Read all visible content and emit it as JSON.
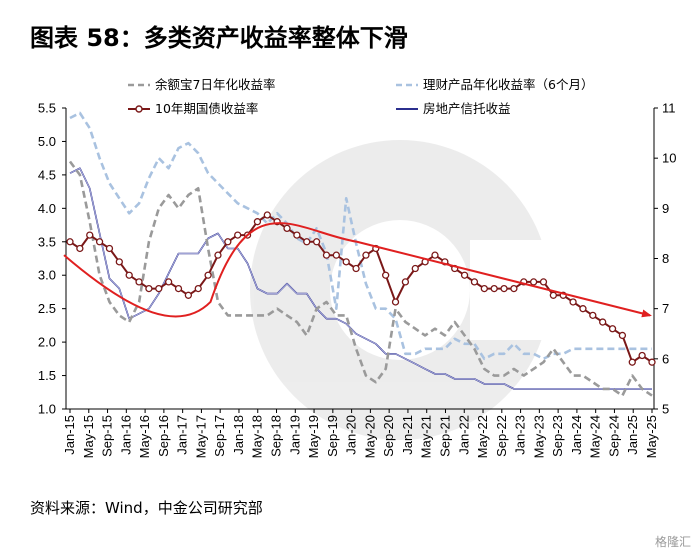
{
  "title": "图表 58：多类资产收益率整体下滑",
  "source": "资料来源：Wind，中金公司研究部",
  "watermark": "格隆汇",
  "chart_data": {
    "type": "line",
    "title": "图表 58：多类资产收益率整体下滑",
    "x_labels": [
      "Jan-15",
      "May-15",
      "Sep-15",
      "Jan-16",
      "May-16",
      "Sep-16",
      "Jan-17",
      "May-17",
      "Sep-17",
      "Jan-18",
      "May-18",
      "Sep-18",
      "Jan-19",
      "May-19",
      "Sep-19",
      "Jan-20",
      "May-20",
      "Sep-20",
      "Jan-21",
      "May-21",
      "Sep-21",
      "Jan-22",
      "May-22",
      "Sep-22",
      "Jan-23",
      "May-23",
      "Sep-23",
      "Jan-24",
      "May-24",
      "Sep-24",
      "Jan-25",
      "May-25"
    ],
    "y_left": {
      "min": 1.0,
      "max": 5.5,
      "ticks": [
        "1.0",
        "1.5",
        "2.0",
        "2.5",
        "3.0",
        "3.5",
        "4.0",
        "4.5",
        "5.0",
        "5.5"
      ]
    },
    "y_right": {
      "min": 5,
      "max": 11,
      "ticks": [
        "5",
        "6",
        "7",
        "8",
        "9",
        "10",
        "11"
      ]
    },
    "grid": false,
    "legend_position": "top",
    "series": [
      {
        "name": "余额宝7日年化收益率",
        "axis": "left",
        "style": "dashed",
        "color": "#9a9a9a",
        "values": [
          4.7,
          4.5,
          3.8,
          3.0,
          2.6,
          2.4,
          2.3,
          2.6,
          3.5,
          4.0,
          4.2,
          4.0,
          4.2,
          4.3,
          3.4,
          2.6,
          2.4,
          2.4,
          2.4,
          2.4,
          2.4,
          2.5,
          2.4,
          2.3,
          2.1,
          2.5,
          2.6,
          2.4,
          2.4,
          1.9,
          1.5,
          1.4,
          1.6,
          2.5,
          2.3,
          2.2,
          2.1,
          2.2,
          2.1,
          2.3,
          2.1,
          1.9,
          1.6,
          1.5,
          1.5,
          1.6,
          1.5,
          1.6,
          1.7,
          1.9,
          1.7,
          1.5,
          1.5,
          1.4,
          1.3,
          1.3,
          1.2,
          1.5,
          1.3,
          1.2
        ]
      },
      {
        "name": "理财产品年化收益率（6个月）",
        "axis": "right",
        "style": "dashed",
        "color": "#a9c2e0",
        "values": [
          10.8,
          10.9,
          10.6,
          10.0,
          9.5,
          9.2,
          8.9,
          9.1,
          9.6,
          10.0,
          9.8,
          10.2,
          10.3,
          10.1,
          9.7,
          9.5,
          9.3,
          9.1,
          9.0,
          8.9,
          8.7,
          8.9,
          8.7,
          8.4,
          8.3,
          8.6,
          8.1,
          7.0,
          9.2,
          8.3,
          7.5,
          7.0,
          7.0,
          6.8,
          6.1,
          6.1,
          6.2,
          6.2,
          6.2,
          6.4,
          6.3,
          6.3,
          6.0,
          6.1,
          6.1,
          6.3,
          6.1,
          6.1,
          6.0,
          6.1,
          6.1,
          6.2,
          6.2,
          6.2,
          6.2,
          6.2,
          6.2,
          6.2,
          6.2,
          6.2
        ]
      },
      {
        "name": "10年期国债收益率",
        "axis": "left",
        "style": "solid-markers",
        "color": "#7a1818",
        "values": [
          3.5,
          3.4,
          3.6,
          3.5,
          3.4,
          3.2,
          3.0,
          2.9,
          2.8,
          2.8,
          2.9,
          2.8,
          2.7,
          2.8,
          3.0,
          3.3,
          3.5,
          3.6,
          3.6,
          3.8,
          3.9,
          3.8,
          3.7,
          3.6,
          3.5,
          3.5,
          3.3,
          3.3,
          3.2,
          3.1,
          3.3,
          3.4,
          3.0,
          2.6,
          2.9,
          3.1,
          3.2,
          3.3,
          3.2,
          3.1,
          3.0,
          2.9,
          2.8,
          2.8,
          2.8,
          2.8,
          2.9,
          2.9,
          2.9,
          2.7,
          2.7,
          2.6,
          2.5,
          2.4,
          2.3,
          2.2,
          2.1,
          1.7,
          1.8,
          1.7
        ]
      },
      {
        "name": "房地产信托收益",
        "axis": "right",
        "style": "solid",
        "color": "#2b2f8e",
        "values": [
          9.7,
          9.8,
          9.4,
          8.5,
          7.6,
          7.4,
          6.8,
          6.9,
          7.0,
          7.3,
          7.7,
          8.1,
          8.1,
          8.1,
          8.4,
          8.5,
          8.2,
          8.2,
          7.9,
          7.4,
          7.3,
          7.3,
          7.5,
          7.3,
          7.3,
          7.0,
          6.8,
          6.8,
          6.7,
          6.5,
          6.4,
          6.3,
          6.1,
          6.1,
          6.0,
          5.9,
          5.8,
          5.7,
          5.7,
          5.6,
          5.6,
          5.6,
          5.5,
          5.5,
          5.5,
          5.4,
          5.4,
          5.4,
          5.4,
          5.4,
          5.4,
          5.4,
          5.4,
          5.4,
          5.4,
          5.4,
          5.4,
          5.4,
          5.4,
          5.4
        ]
      },
      {
        "name": "",
        "axis": "left",
        "style": "trend-arrow",
        "color": "#e02020",
        "values": [
          3.3,
          2.6,
          3.5,
          3.5,
          2.4
        ]
      }
    ]
  }
}
